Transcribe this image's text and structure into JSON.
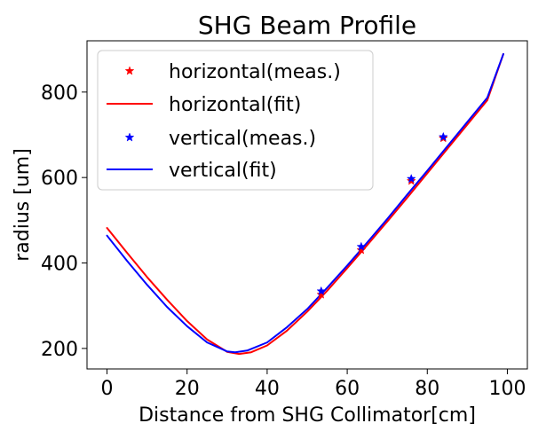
{
  "chart_data": {
    "type": "line",
    "title": "SHG Beam Profile",
    "xlabel": "Distance from SHG Collimator[cm]",
    "ylabel": "radius [um]",
    "xlim": [
      -5,
      105
    ],
    "ylim": [
      152,
      920
    ],
    "xticks": [
      0,
      20,
      40,
      60,
      80,
      100
    ],
    "yticks": [
      200,
      400,
      600,
      800
    ],
    "xtick_labels": [
      "0",
      "20",
      "40",
      "60",
      "80",
      "100"
    ],
    "ytick_labels": [
      "200",
      "400",
      "600",
      "800"
    ],
    "grid": false,
    "legend_position": "top-left",
    "series": [
      {
        "name": "horizontal(meas.)",
        "kind": "scatter",
        "marker": "star",
        "color": "#ff0000",
        "x": [
          53.5,
          63.5,
          76.0,
          84.0
        ],
        "y": [
          326,
          430,
          592,
          692
        ]
      },
      {
        "name": "horizontal(fit)",
        "kind": "line",
        "color": "#ff0000",
        "x": [
          0,
          5,
          10,
          15,
          20,
          25,
          30,
          33,
          36,
          40,
          45,
          50,
          55,
          60,
          65,
          70,
          75,
          80,
          85,
          90,
          95,
          99
        ],
        "y": [
          482,
          424,
          367,
          314,
          264,
          221,
          192,
          187,
          191,
          207,
          242,
          286,
          335,
          388,
          442,
          497,
          553,
          610,
          667,
          724,
          781,
          889
        ]
      },
      {
        "name": "vertical(meas.)",
        "kind": "scatter",
        "marker": "star",
        "color": "#0000ff",
        "x": [
          53.5,
          63.5,
          76.0,
          84.0
        ],
        "y": [
          334,
          438,
          597,
          695
        ]
      },
      {
        "name": "vertical(fit)",
        "kind": "line",
        "color": "#0000ff",
        "x": [
          0,
          5,
          10,
          15,
          20,
          25,
          30,
          32,
          35,
          40,
          45,
          50,
          55,
          60,
          65,
          70,
          75,
          80,
          85,
          90,
          95,
          99
        ],
        "y": [
          464,
          405,
          349,
          297,
          252,
          214,
          193,
          191,
          195,
          214,
          250,
          292,
          342,
          394,
          448,
          503,
          560,
          616,
          673,
          730,
          787,
          889
        ]
      }
    ]
  }
}
